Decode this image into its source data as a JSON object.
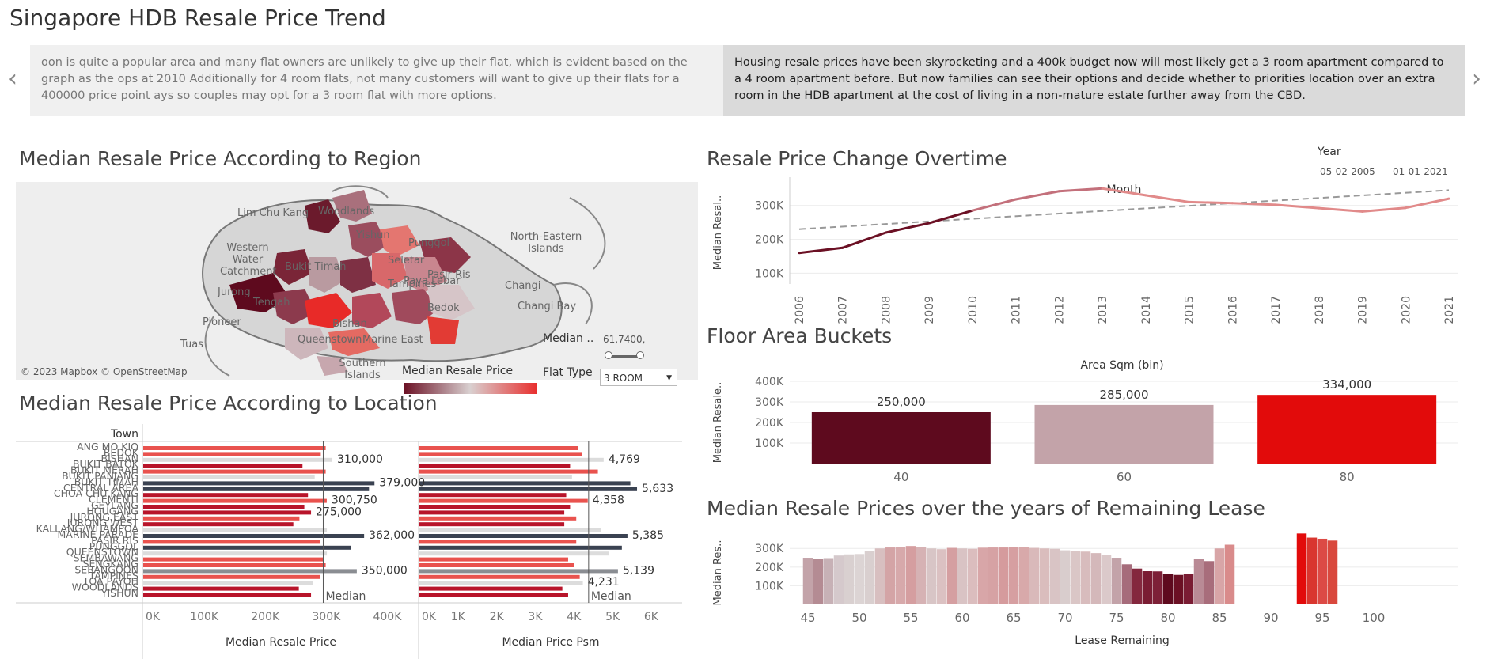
{
  "page_title": "Singapore HDB Resale Price Trend",
  "story": {
    "left_text": "oon is quite a popular area and many flat owners are unlikely to give up their flat, which is evident based on the graph as the ops at 2010 Additionally for 4 room flats, not many customers will want to give up their flats for a 400000 price point ays so couples may opt for a 3 room flat with more options.",
    "right_text": "Housing resale prices have been skyrocketing and a 400k budget now will most likely get a 3 room apartment compared to a 4 room apartment before. But now families can see their options and decide whether to priorities location over an extra room in the HDB apartment at the cost of living in a non-mature estate further away from the CBD.",
    "prev_icon": "chevron-left-icon",
    "next_icon": "chevron-right-icon"
  },
  "map_panel": {
    "title": "Median Resale Price According to Region",
    "labels": [
      "Lim Chu Kang",
      "Western Water Catchment",
      "Jurong",
      "Pioneer",
      "Tuas",
      "Woodlands",
      "Punggol",
      "North-Eastern Islands",
      "Changi",
      "Changi Bay",
      "Pasir Ris",
      "Bedok",
      "Tampines",
      "Queenstown",
      "Marine East",
      "Southern Islands",
      "Bukit Timah",
      "Tengah",
      "Yishun",
      "Seletar",
      "Paya Lebar",
      "Bishan"
    ],
    "credit": "© 2023 Mapbox © OpenStreetMap",
    "legend_title": "Median Resale Price",
    "median_filter_label": "Median ..",
    "median_filter_value": "61,7400,",
    "flat_type_label": "Flat Type",
    "flat_type_value": "3 ROOM",
    "colors": {
      "dark": "#6b1024",
      "light": "#d9d0d0",
      "red": "#e8302f"
    }
  },
  "chart_data": [
    {
      "type": "line",
      "title": "Resale Price Change Overtime",
      "xlabel": "Month",
      "ylabel": "Median Resal..",
      "legend_title": "Year",
      "legend_start": "05-02-2005",
      "legend_end": "01-01-2021",
      "x": [
        "2006",
        "2007",
        "2008",
        "2009",
        "2010",
        "2011",
        "2012",
        "2013",
        "2014",
        "2015",
        "2016",
        "2017",
        "2018",
        "2019",
        "2020",
        "2021"
      ],
      "values": [
        160000,
        175000,
        220000,
        248000,
        285000,
        318000,
        342000,
        350000,
        330000,
        310000,
        307000,
        302000,
        292000,
        282000,
        293000,
        320000
      ],
      "trend": [
        230000,
        345000
      ],
      "yticks": [
        "100K",
        "200K",
        "300K"
      ],
      "ylim": [
        80000,
        360000
      ]
    },
    {
      "type": "bar",
      "title": "Floor Area Buckets",
      "xlabel": "Area Sqm (bin)",
      "ylabel": "Median Resale..",
      "categories": [
        "40",
        "60",
        "80"
      ],
      "values": [
        250000,
        285000,
        334000
      ],
      "labels": [
        "250,000",
        "285,000",
        "334,000"
      ],
      "colors": [
        "#5e0a1e",
        "#c3a3a9",
        "#e20b0b"
      ],
      "yticks": [
        "100K",
        "200K",
        "300K",
        "400K"
      ],
      "ylim": [
        0,
        400000
      ]
    },
    {
      "type": "bar",
      "title": "Median Resale Prices over the years of Remaining Lease",
      "xlabel": "Lease Remaining",
      "ylabel": "Median Res..",
      "x": [
        45,
        46,
        47,
        48,
        49,
        50,
        51,
        52,
        53,
        54,
        55,
        56,
        57,
        58,
        59,
        60,
        61,
        62,
        63,
        64,
        65,
        66,
        67,
        68,
        69,
        70,
        71,
        72,
        73,
        74,
        75,
        76,
        77,
        78,
        79,
        80,
        81,
        82,
        83,
        84,
        85,
        86,
        93,
        94,
        95,
        96
      ],
      "values": [
        250000,
        245000,
        248000,
        262000,
        268000,
        270000,
        285000,
        300000,
        305000,
        308000,
        313000,
        308000,
        300000,
        296000,
        303000,
        300000,
        298000,
        304000,
        305000,
        305000,
        306000,
        306000,
        303000,
        300000,
        298000,
        290000,
        285000,
        283000,
        275000,
        265000,
        250000,
        215000,
        192000,
        178000,
        177000,
        165000,
        158000,
        162000,
        245000,
        232000,
        300000,
        320000,
        380000,
        358000,
        352000,
        342000
      ],
      "colors": [
        "#c3a3a9",
        "#b48b93",
        "#c7b1b6",
        "#d5c9cc",
        "#d9d0d0",
        "#dcd4d4",
        "#d9cfcf",
        "#d8bfc0",
        "#d4a4a6",
        "#d7a9ab",
        "#d59ea0",
        "#d6b2b4",
        "#d8c5c6",
        "#dbc1c2",
        "#d59fa1",
        "#d9c3c4",
        "#dbbdbe",
        "#d8a6a8",
        "#d6a2a4",
        "#d59b9d",
        "#d69fa1",
        "#d8a9aa",
        "#d9b9ba",
        "#dabdbd",
        "#d9c4c5",
        "#d9cdcd",
        "#dac6c6",
        "#d8bcbd",
        "#d4b8ba",
        "#dbc9ca",
        "#c3a3a9",
        "#a66c7b",
        "#84283e",
        "#7a1c33",
        "#7d2037",
        "#5e0a1e",
        "#6b1024",
        "#7a1c33",
        "#b98a95",
        "#a86d7b",
        "#d8a5a7",
        "#d98b8b",
        "#e20b0b",
        "#d9362f",
        "#dc4a45",
        "#d9483d"
      ],
      "xticks": [
        "45",
        "50",
        "55",
        "60",
        "65",
        "70",
        "75",
        "80",
        "85",
        "90",
        "95",
        "100"
      ],
      "yticks": [
        "100K",
        "200K",
        "300K"
      ],
      "ylim": [
        0,
        390000
      ]
    },
    {
      "type": "bar",
      "orientation": "horizontal",
      "title": "Median Resale Price According to Location",
      "row_header": "Town",
      "xlabel": "Median Resale Price",
      "reference_label": "Median",
      "reference_value": 295000,
      "categories": [
        "ANG MO KIO",
        "BEDOK",
        "BISHAN",
        "BUKIT BATOK",
        "BUKIT MERAH",
        "BUKIT PANJANG",
        "BUKIT TIMAH",
        "CENTRAL AREA",
        "CHOA CHU KANG",
        "CLEMENTI",
        "GEYLANG",
        "HOUGANG",
        "JURONG EAST",
        "JURONG WEST",
        "KALLANG/WHAMPOA",
        "MARINE PARADE",
        "PASIR RIS",
        "PUNGGOL",
        "QUEENSTOWN",
        "SEMBAWANG",
        "SENGKANG",
        "SERANGOON",
        "TAMPINES",
        "TOA PAYOH",
        "WOODLANDS",
        "YISHUN"
      ],
      "values": [
        299000,
        291000,
        310000,
        261000,
        299000,
        281000,
        379000,
        370000,
        270000,
        300750,
        264000,
        275000,
        256000,
        246000,
        301000,
        362000,
        290000,
        340000,
        301000,
        295000,
        299000,
        350000,
        290000,
        278000,
        255000,
        275000
      ],
      "labels": {
        "2": "310,000",
        "6": "379,000",
        "9": "300,750",
        "11": "275,000",
        "15": "362,000",
        "21": "350,000"
      },
      "colors": [
        "#e9524e",
        "#e9524e",
        "#dcdcdc",
        "#b8142a",
        "#e9524e",
        "#dcdcdc",
        "#3a4251",
        "#3a4251",
        "#b8142a",
        "#e9524e",
        "#b8142a",
        "#b8142a",
        "#e9524e",
        "#b8142a",
        "#dcdcdc",
        "#3a4251",
        "#e9524e",
        "#3a4251",
        "#dcdcdc",
        "#e9524e",
        "#e9524e",
        "#8a8d92",
        "#e9524e",
        "#dcdcdc",
        "#b8142a",
        "#b8142a"
      ],
      "xticks": [
        "0K",
        "100K",
        "200K",
        "300K",
        "400K"
      ],
      "xlim": [
        0,
        450000
      ]
    },
    {
      "type": "bar",
      "orientation": "horizontal",
      "title": "Median Price Psm",
      "xlabel": "Median Price Psm",
      "reference_label": "Median",
      "reference_value": 4380,
      "values": [
        4100,
        4200,
        4769,
        3900,
        4620,
        3950,
        5460,
        5633,
        3800,
        4358,
        3900,
        3750,
        4060,
        3750,
        4700,
        5385,
        4060,
        5240,
        4900,
        3850,
        4000,
        5139,
        4150,
        4231,
        3700,
        3850
      ],
      "labels": {
        "2": "4,769",
        "7": "5,633",
        "9": "4,358",
        "15": "5,385",
        "21": "5,139",
        "23": "4,231"
      },
      "xticks": [
        "0K",
        "1K",
        "2K",
        "3K",
        "4K",
        "5K",
        "6K"
      ],
      "xlim": [
        0,
        6800
      ]
    }
  ]
}
